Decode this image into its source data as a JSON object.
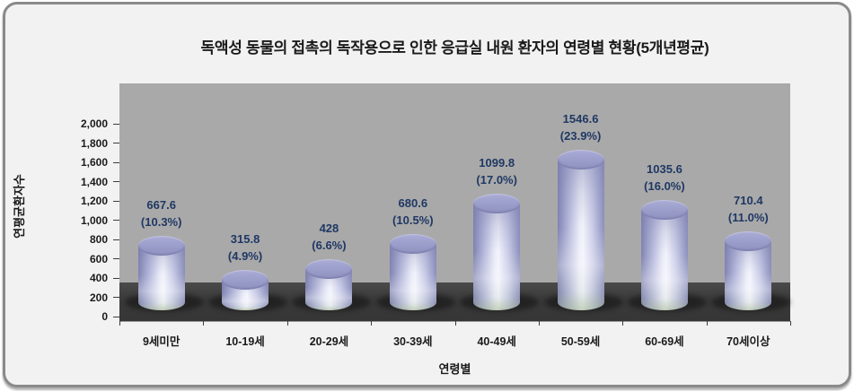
{
  "title": "독액성 동물의 접촉의 독작용으로 인한 응급실 내원 환자의 연령별 현황(5개년평균)",
  "chart_data": {
    "type": "bar",
    "bar_style": "3d-cylinder",
    "title": "독액성 동물의 접촉의 독작용으로 인한 응급실 내원 환자의 연령별 현황(5개년평균)",
    "categories": [
      "9세미만",
      "10-19세",
      "20-29세",
      "30-39세",
      "40-49세",
      "50-59세",
      "60-69세",
      "70세이상"
    ],
    "values": [
      667.6,
      315.8,
      428,
      680.6,
      1099.8,
      1546.6,
      1035.6,
      710.4
    ],
    "percents": [
      10.3,
      4.9,
      6.6,
      10.5,
      17.0,
      23.9,
      16.0,
      11.0
    ],
    "value_labels": [
      "667.6",
      "315.8",
      "428",
      "680.6",
      "1099.8",
      "1546.6",
      "1035.6",
      "710.4"
    ],
    "percent_labels": [
      "(10.3%)",
      "(4.9%)",
      "(6.6%)",
      "(10.5%)",
      "(17.0%)",
      "(23.9%)",
      "(16.0%)",
      "(11.0%)"
    ],
    "xlabel": "연령별",
    "ylabel": "연평균환자수",
    "ylim": [
      0,
      2000
    ],
    "ytick_step": 200,
    "ytick_labels": [
      "0",
      "200",
      "400",
      "600",
      "800",
      "1,000",
      "1,200",
      "1,400",
      "1,600",
      "1,800",
      "2,000"
    ],
    "grid": "off",
    "legend": "none"
  },
  "colors": {
    "panel_bg": "#f2f2f2",
    "panel_border": "#8a8a8a",
    "wall": "#a9a9a9",
    "floor": "#3c3c3c",
    "cylinder_base": "#9b9dc9",
    "cylinder_highlight": "#eef0fa",
    "data_label": "#1f3864",
    "axis_text": "#1a1a1a"
  }
}
